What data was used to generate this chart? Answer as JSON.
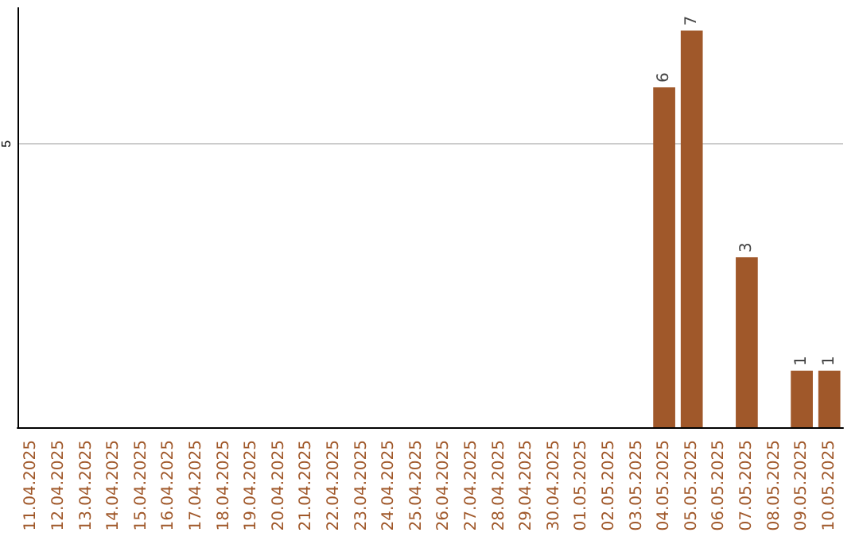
{
  "chart_data": {
    "type": "bar",
    "categories": [
      "11.04.2025",
      "12.04.2025",
      "13.04.2025",
      "14.04.2025",
      "15.04.2025",
      "16.04.2025",
      "17.04.2025",
      "18.04.2025",
      "19.04.2025",
      "20.04.2025",
      "21.04.2025",
      "22.04.2025",
      "23.04.2025",
      "24.04.2025",
      "25.04.2025",
      "26.04.2025",
      "27.04.2025",
      "28.04.2025",
      "29.04.2025",
      "30.04.2025",
      "01.05.2025",
      "02.05.2025",
      "03.05.2025",
      "04.05.2025",
      "05.05.2025",
      "06.05.2025",
      "07.05.2025",
      "08.05.2025",
      "09.05.2025",
      "10.05.2025"
    ],
    "values": [
      null,
      null,
      null,
      null,
      null,
      null,
      null,
      null,
      null,
      null,
      null,
      null,
      null,
      null,
      null,
      null,
      null,
      null,
      null,
      null,
      null,
      null,
      null,
      6,
      7,
      null,
      3,
      null,
      1,
      1
    ],
    "data_labels": true,
    "color": "#a0582a",
    "ylim": [
      0,
      7.4
    ],
    "yticks": [
      5
    ],
    "grid": "y"
  }
}
